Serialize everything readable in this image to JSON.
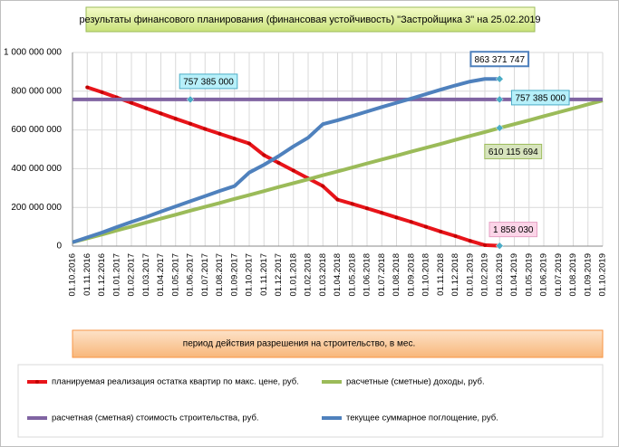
{
  "chart_data": {
    "type": "line",
    "title": "результаты финансового планирования (финансовая устойчивость) \"Застройщика  3\" на 25.02.2019",
    "x_label": "период  действия разрешения на строительство, в мес.",
    "categories": [
      "01.10.2016",
      "01.11.2016",
      "01.12.2016",
      "01.01.2017",
      "01.02.2017",
      "01.03.2017",
      "01.04.2017",
      "01.05.2017",
      "01.06.2017",
      "01.07.2017",
      "01.08.2017",
      "01.09.2017",
      "01.10.2017",
      "01.11.2017",
      "01.12.2017",
      "01.01.2018",
      "01.02.2018",
      "01.03.2018",
      "01.04.2018",
      "01.05.2018",
      "01.06.2018",
      "01.07.2018",
      "01.08.2018",
      "01.09.2018",
      "01.10.2018",
      "01.11.2018",
      "01.12.2018",
      "01.01.2019",
      "01.02.2019",
      "01.03.2019",
      "01.04.2019",
      "01.05.2019",
      "01.06.2019",
      "01.07.2019",
      "01.08.2019",
      "01.09.2019",
      "01.10.2019"
    ],
    "ylim": [
      0,
      1000000000
    ],
    "yticks": [
      0,
      {
        "value": 200000000,
        "label": "200 000 000"
      },
      {
        "value": 400000000,
        "label": "400 000 000"
      },
      {
        "value": 600000000,
        "label": "600 000 000"
      },
      {
        "value": 800000000,
        "label": "800 000 000"
      },
      {
        "value": 1000000000,
        "label": "1 000 000 000"
      }
    ],
    "grid": true,
    "series": [
      {
        "name": "планируемая реализация остатка квартир по макс. цене, руб.",
        "color": "#e8141a",
        "values": [
          null,
          820000000,
          795000000,
          768000000,
          740000000,
          712000000,
          685000000,
          658000000,
          632000000,
          605000000,
          580000000,
          555000000,
          530000000,
          470000000,
          430000000,
          390000000,
          350000000,
          310000000,
          240000000,
          218000000,
          195000000,
          172000000,
          148000000,
          125000000,
          100000000,
          75000000,
          52000000,
          27000000,
          5000000,
          1858030,
          null,
          null,
          null,
          null,
          null,
          null,
          null
        ],
        "value_labels": [
          null,
          null,
          null,
          null,
          null,
          null,
          null,
          null,
          null,
          null,
          null,
          null,
          null,
          null,
          null,
          null,
          null,
          null,
          null,
          null,
          null,
          null,
          null,
          null,
          null,
          null,
          null,
          null,
          null,
          "1 858 030",
          null,
          null,
          null,
          null,
          null,
          null,
          null
        ]
      },
      {
        "name": "расчетные (сметные) доходы, руб.",
        "color": "#9bbb59",
        "values": [
          20000000,
          40000000,
          60000000,
          81000000,
          101000000,
          122000000,
          142000000,
          162000000,
          183000000,
          203000000,
          223000000,
          244000000,
          264000000,
          284000000,
          305000000,
          325000000,
          345000000,
          366000000,
          386000000,
          406000000,
          427000000,
          447000000,
          467000000,
          488000000,
          508000000,
          528000000,
          549000000,
          569000000,
          589000000,
          610115694,
          630000000,
          650000000,
          671000000,
          691000000,
          711000000,
          732000000,
          752000000
        ],
        "value_labels": [
          null,
          null,
          null,
          null,
          null,
          null,
          null,
          null,
          null,
          null,
          null,
          null,
          null,
          null,
          null,
          null,
          null,
          null,
          null,
          null,
          null,
          null,
          null,
          null,
          null,
          null,
          null,
          null,
          null,
          "610 115 694",
          null,
          null,
          null,
          null,
          null,
          null,
          null
        ]
      },
      {
        "name": "расчетная (сметная) стоимость строительства, руб.",
        "color": "#8064a2",
        "values": [
          757385000,
          757385000,
          757385000,
          757385000,
          757385000,
          757385000,
          757385000,
          757385000,
          757385000,
          757385000,
          757385000,
          757385000,
          757385000,
          757385000,
          757385000,
          757385000,
          757385000,
          757385000,
          757385000,
          757385000,
          757385000,
          757385000,
          757385000,
          757385000,
          757385000,
          757385000,
          757385000,
          757385000,
          757385000,
          757385000,
          757385000,
          757385000,
          757385000,
          757385000,
          757385000,
          757385000,
          757385000
        ],
        "value_labels": [
          null,
          null,
          null,
          null,
          null,
          null,
          null,
          null,
          "757 385 000",
          null,
          null,
          null,
          null,
          null,
          null,
          null,
          null,
          null,
          null,
          null,
          null,
          null,
          null,
          null,
          null,
          null,
          null,
          null,
          null,
          "757 385 000",
          null,
          null,
          null,
          null,
          null,
          null,
          null
        ]
      },
      {
        "name": "текущее суммарное поглощение, руб.",
        "color": "#4f81bd",
        "values": [
          20000000,
          45000000,
          70000000,
          98000000,
          125000000,
          150000000,
          178000000,
          205000000,
          232000000,
          258000000,
          285000000,
          310000000,
          380000000,
          420000000,
          465000000,
          515000000,
          560000000,
          630000000,
          650000000,
          672000000,
          695000000,
          718000000,
          740000000,
          762000000,
          785000000,
          808000000,
          830000000,
          850000000,
          863371747,
          863371747,
          null,
          null,
          null,
          null,
          null,
          null,
          null
        ],
        "value_labels": [
          null,
          null,
          null,
          null,
          null,
          null,
          null,
          null,
          null,
          null,
          null,
          null,
          null,
          null,
          null,
          null,
          null,
          null,
          null,
          null,
          null,
          null,
          null,
          null,
          null,
          null,
          null,
          null,
          null,
          "863 371 747",
          null,
          null,
          null,
          null,
          null,
          null,
          null
        ]
      }
    ]
  }
}
